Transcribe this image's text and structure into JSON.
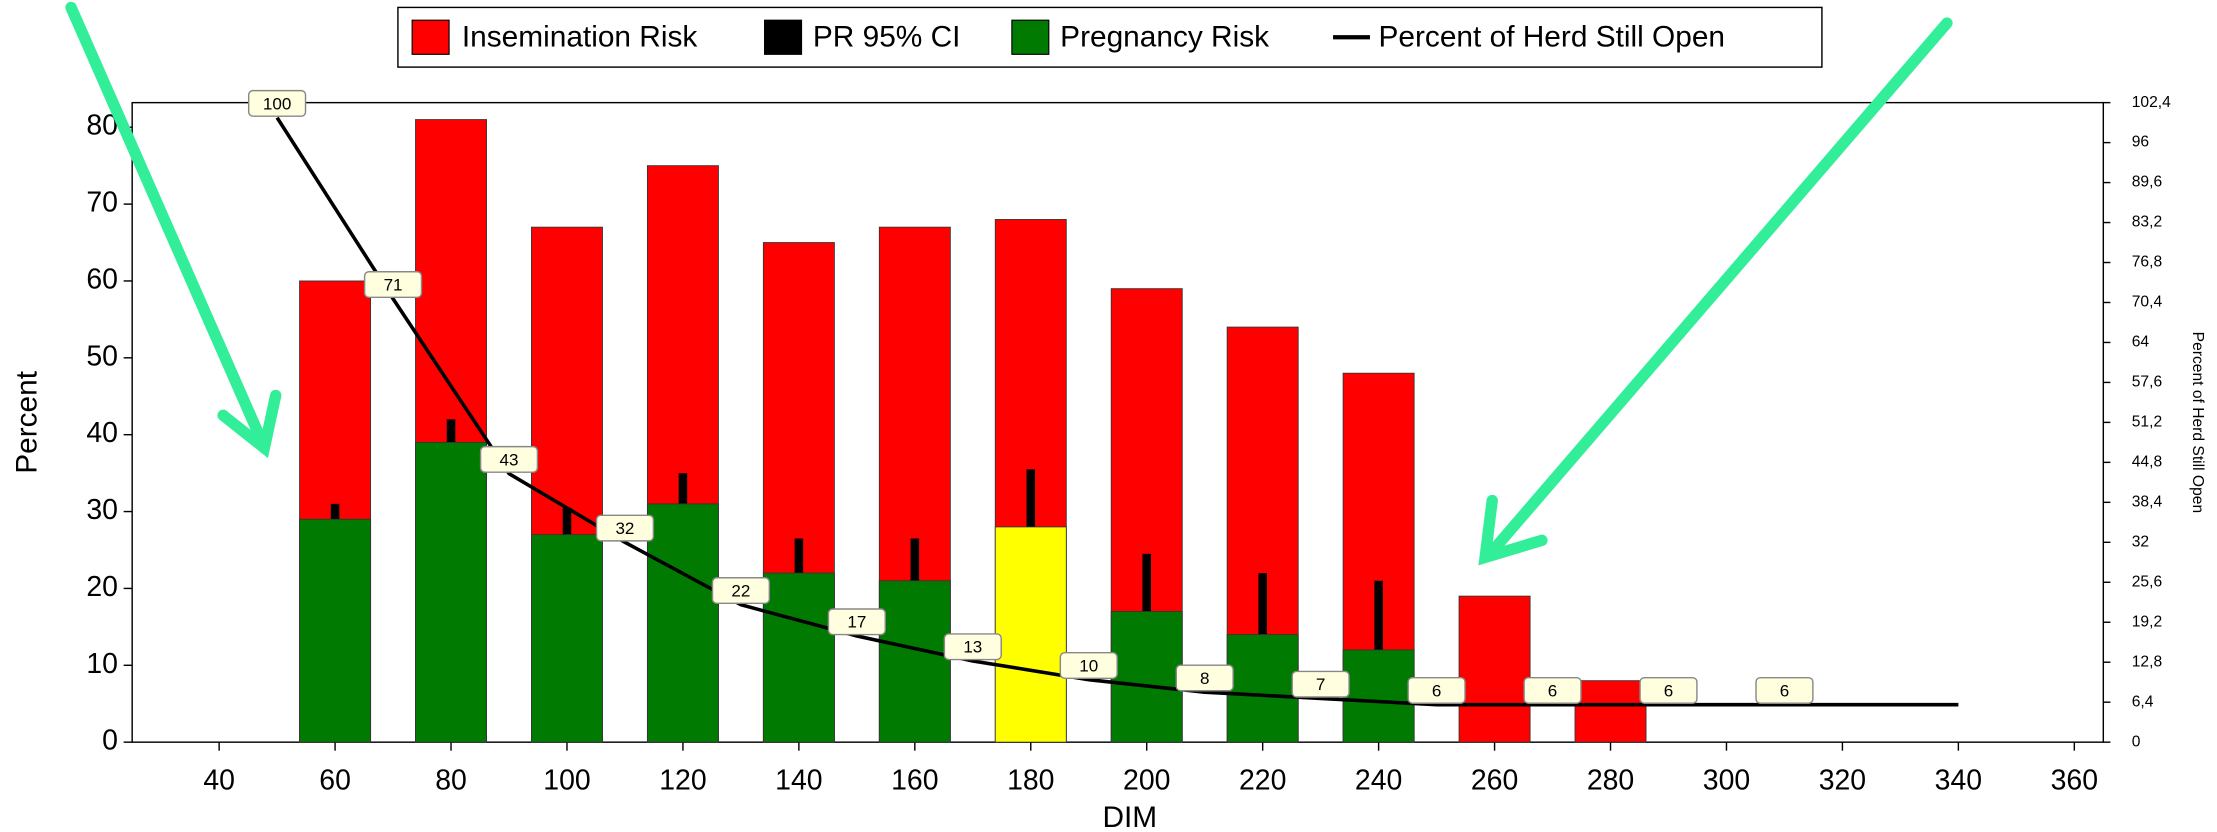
{
  "chart_data": {
    "type": "combo",
    "xlabel": "DIM",
    "ylabel": "Percent",
    "y2label": "Percent of Herd Still Open",
    "x": [
      60,
      80,
      100,
      120,
      140,
      160,
      180,
      200,
      220,
      240,
      260,
      280,
      300,
      320,
      340
    ],
    "series": [
      {
        "name": "Insemination Risk",
        "type": "bar",
        "color": "#ff0000",
        "values": [
          60,
          81,
          67,
          75,
          65,
          67,
          68,
          59,
          54,
          48,
          19,
          8,
          0,
          0,
          0
        ]
      },
      {
        "name": "PR 95% CI",
        "type": "errorbar",
        "color": "#000000",
        "values": [
          31,
          42,
          30.5,
          35,
          26.5,
          26.5,
          35.5,
          24.5,
          22,
          21,
          null,
          null,
          null,
          null,
          null
        ]
      },
      {
        "name": "Pregnancy Risk",
        "type": "bar",
        "color": "#007a00",
        "point_colors": [
          "#007a00",
          "#007a00",
          "#007a00",
          "#007a00",
          "#007a00",
          "#007a00",
          "#ffff00",
          "#007a00",
          "#007a00",
          "#007a00",
          "#007a00",
          "#007a00",
          "#007a00",
          "#007a00",
          "#007a00"
        ],
        "values": [
          29,
          39,
          27,
          31,
          22,
          21,
          28,
          17,
          14,
          12,
          0,
          0,
          0,
          0,
          0
        ]
      },
      {
        "name": "Percent of Herd Still Open",
        "type": "line",
        "color": "#000000",
        "axis": "y2",
        "x": [
          50,
          70,
          90,
          110,
          130,
          150,
          170,
          190,
          210,
          230,
          250,
          270,
          290,
          310,
          340
        ],
        "values": [
          100,
          71,
          43,
          32,
          22,
          17,
          13,
          10,
          8,
          7,
          6,
          6,
          6,
          6,
          6
        ],
        "value_labels": [
          "100",
          "71",
          "43",
          "32",
          "22",
          "17",
          "13",
          "10",
          "8",
          "7",
          "6",
          "6",
          "6",
          "6",
          null
        ]
      }
    ],
    "xlim": [
      25,
      365
    ],
    "xticks": [
      40,
      60,
      80,
      100,
      120,
      140,
      160,
      180,
      200,
      220,
      240,
      260,
      280,
      300,
      320,
      340,
      360
    ],
    "ylim": [
      0,
      83.2
    ],
    "yticks": [
      0,
      10,
      20,
      30,
      40,
      50,
      60,
      70,
      80
    ],
    "y2lim": [
      0,
      102.4
    ],
    "y2ticks": [
      0,
      {
        "value": 6.4,
        "label": "6,4"
      },
      {
        "value": 12.8,
        "label": "12,8"
      },
      {
        "value": 19.2,
        "label": "19,2"
      },
      {
        "value": 25.6,
        "label": "25,6"
      },
      32,
      {
        "value": 38.4,
        "label": "38,4"
      },
      {
        "value": 44.8,
        "label": "44,8"
      },
      {
        "value": 51.2,
        "label": "51,2"
      },
      {
        "value": 57.6,
        "label": "57,6"
      },
      64,
      {
        "value": 70.4,
        "label": "70,4"
      },
      {
        "value": 76.8,
        "label": "76,8"
      },
      {
        "value": 83.2,
        "label": "83,2"
      },
      {
        "value": 89.6,
        "label": "89,6"
      },
      96,
      {
        "value": 102.4,
        "label": "102,4"
      }
    ],
    "legend": "top",
    "grid": false
  }
}
